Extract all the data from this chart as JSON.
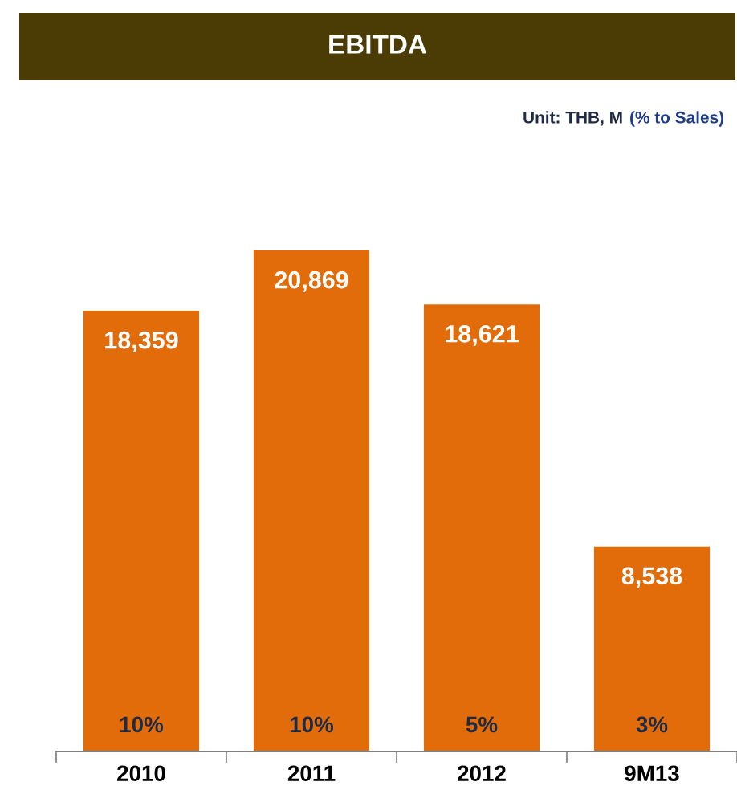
{
  "chart_data": {
    "type": "bar",
    "title": "EBITDA",
    "subtitle": "Unit: THB, M",
    "categories": [
      "2010",
      "2011",
      "2012",
      "9M13"
    ],
    "values": [
      18359,
      20869,
      18621,
      8538
    ],
    "value_labels": [
      "18,359",
      "20,869",
      "18,621",
      "8,538"
    ],
    "color": "#e36c0a",
    "annotations": [
      "(% to Sales)",
      "10%",
      "10%",
      "5%",
      "3%"
    ],
    "grid": false,
    "legend": false
  }
}
